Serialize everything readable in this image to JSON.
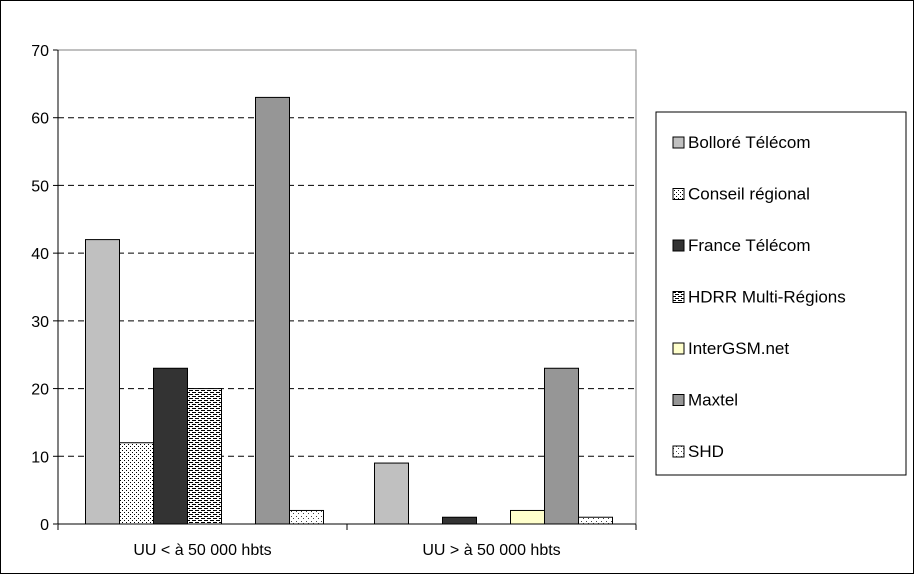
{
  "chart_data": {
    "type": "bar",
    "categories": [
      "UU < à 50 000 hbts",
      "UU > à 50 000 hbts"
    ],
    "series": [
      {
        "name": "Bolloré Télécom",
        "values": [
          42,
          9
        ],
        "color": "#c0c0c0",
        "pattern": "solid"
      },
      {
        "name": "Conseil régional",
        "values": [
          12,
          0
        ],
        "color": "#ffffff",
        "pattern": "dots"
      },
      {
        "name": "France Télécom",
        "values": [
          23,
          1
        ],
        "color": "#333333",
        "pattern": "solid"
      },
      {
        "name": "HDRR Multi-Régions",
        "values": [
          20,
          0
        ],
        "color": "#ffffff",
        "pattern": "dash-grid"
      },
      {
        "name": "InterGSM.net",
        "values": [
          0,
          2
        ],
        "color": "#ffffcc",
        "pattern": "solid"
      },
      {
        "name": "Maxtel",
        "values": [
          63,
          23
        ],
        "color": "#969696",
        "pattern": "solid"
      },
      {
        "name": "SHD",
        "values": [
          2,
          1
        ],
        "color": "#ffffff",
        "pattern": "fine-dots"
      }
    ],
    "yticks": [
      "0",
      "10",
      "20",
      "30",
      "40",
      "50",
      "60",
      "70"
    ],
    "ylim": [
      0,
      70
    ],
    "grid": "horizontal-dashed",
    "legend_position": "right"
  }
}
